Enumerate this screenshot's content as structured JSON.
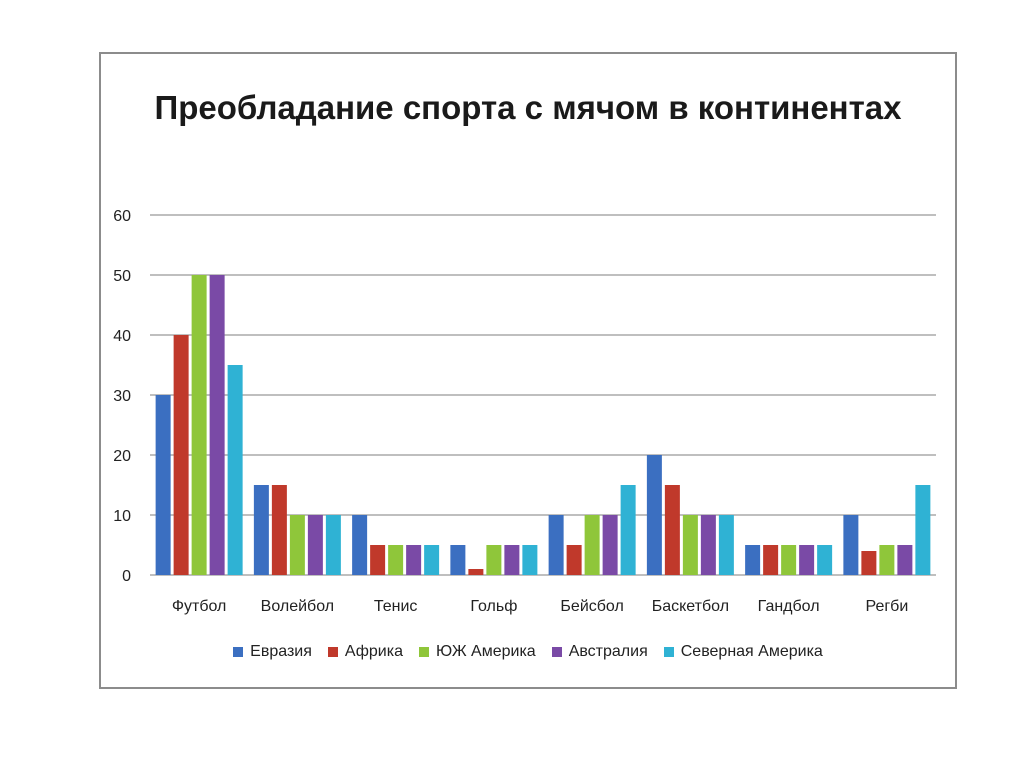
{
  "chart_data": {
    "type": "bar",
    "title": "Преобладание спорта с мячом в континентах",
    "categories": [
      "Футбол",
      "Волейбол",
      "Тенис",
      "Гольф",
      "Бейсбол",
      "Баскетбол",
      "Гандбол",
      "Регби"
    ],
    "series": [
      {
        "name": "Евразия",
        "color": "#3b6fc1",
        "values": [
          30,
          15,
          10,
          5,
          10,
          20,
          5,
          10
        ]
      },
      {
        "name": "Африка",
        "color": "#c0392b",
        "values": [
          40,
          15,
          5,
          1,
          5,
          15,
          5,
          4
        ]
      },
      {
        "name": "ЮЖ Америка",
        "color": "#8fc63a",
        "values": [
          50,
          10,
          5,
          5,
          10,
          10,
          5,
          5
        ]
      },
      {
        "name": "Австралия",
        "color": "#7a4aa6",
        "values": [
          50,
          10,
          5,
          5,
          10,
          10,
          5,
          5
        ]
      },
      {
        "name": "Северная Америка",
        "color": "#2fb2d4",
        "values": [
          35,
          10,
          5,
          5,
          15,
          10,
          5,
          15
        ]
      }
    ],
    "ylim": [
      0,
      60
    ],
    "yticks": [
      0,
      10,
      20,
      30,
      40,
      50,
      60
    ],
    "grid": true,
    "legend_position": "bottom"
  }
}
